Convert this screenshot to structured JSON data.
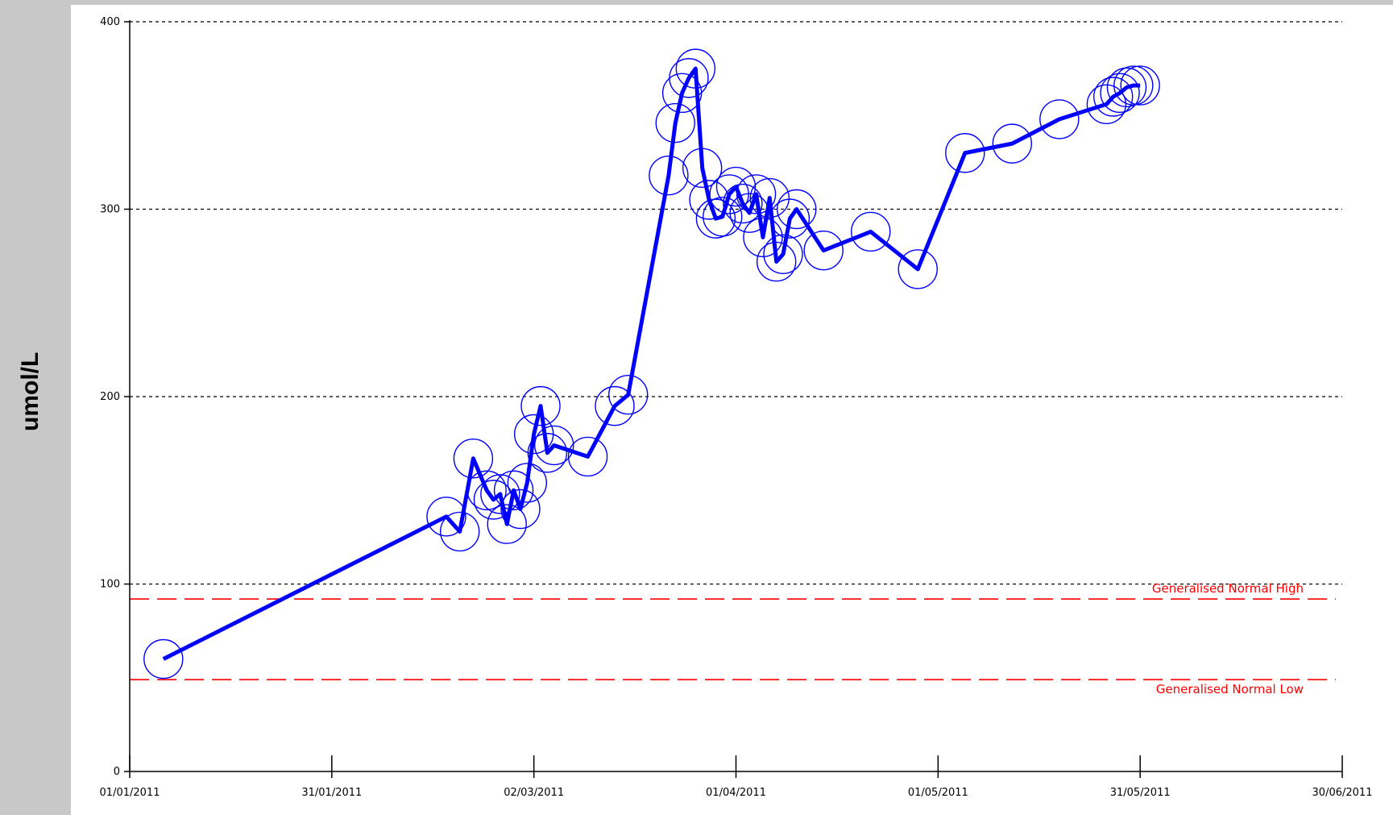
{
  "chart_data": {
    "type": "line",
    "title": "",
    "xlabel": "",
    "ylabel": "umol/L",
    "ylim": [
      0,
      400
    ],
    "y_ticks": [
      0,
      100,
      200,
      300,
      400
    ],
    "x_ticks": [
      "01/01/2011",
      "31/01/2011",
      "02/03/2011",
      "01/04/2011",
      "01/05/2011",
      "31/05/2011",
      "30/06/2011"
    ],
    "xlim": [
      "01/01/2011",
      "30/06/2011"
    ],
    "grid": "horizontal dashed at y ticks",
    "series": [
      {
        "x": [
          "06/01/2011",
          "17/02/2011",
          "19/02/2011",
          "21/02/2011",
          "23/02/2011",
          "24/02/2011",
          "25/02/2011",
          "26/02/2011",
          "27/02/2011",
          "28/02/2011",
          "01/03/2011",
          "02/03/2011",
          "03/03/2011",
          "04/03/2011",
          "05/03/2011",
          "10/03/2011",
          "14/03/2011",
          "16/03/2011",
          "22/03/2011",
          "23/03/2011",
          "24/03/2011",
          "25/03/2011",
          "26/03/2011",
          "27/03/2011",
          "28/03/2011",
          "29/03/2011",
          "30/03/2011",
          "31/03/2011",
          "01/04/2011",
          "02/04/2011",
          "03/04/2011",
          "04/04/2011",
          "05/04/2011",
          "06/04/2011",
          "07/04/2011",
          "08/04/2011",
          "09/04/2011",
          "10/04/2011",
          "14/04/2011",
          "21/04/2011",
          "28/04/2011",
          "05/05/2011",
          "12/05/2011",
          "19/05/2011",
          "26/05/2011",
          "27/05/2011",
          "28/05/2011",
          "29/05/2011",
          "30/05/2011",
          "31/05/2011"
        ],
        "y": [
          60,
          136,
          128,
          167,
          150,
          145,
          148,
          132,
          150,
          140,
          154,
          180,
          195,
          170,
          174,
          168,
          195,
          201,
          318,
          346,
          362,
          370,
          375,
          322,
          305,
          295,
          296,
          308,
          312,
          303,
          298,
          308,
          285,
          306,
          272,
          276,
          295,
          300,
          278,
          288,
          268,
          330,
          335,
          348,
          356,
          360,
          362,
          365,
          366,
          366
        ]
      }
    ],
    "reference_lines": [
      {
        "label": "Generalised Normal High",
        "y": 92,
        "color": "#ff0000"
      },
      {
        "label": "Generalised Normal Low",
        "y": 49,
        "color": "#ff0000"
      }
    ],
    "line_color": "#0000ff",
    "marker": "open circle"
  }
}
